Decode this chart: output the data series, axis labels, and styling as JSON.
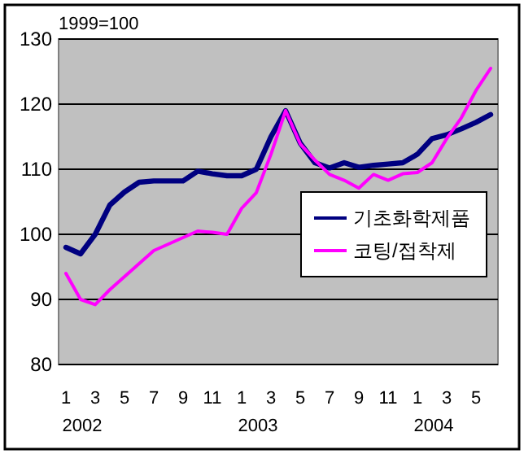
{
  "chart_data": {
    "type": "line",
    "subtitle": "1999=100",
    "categories": [
      "1",
      null,
      "3",
      null,
      "5",
      null,
      "7",
      null,
      "9",
      null,
      "11",
      null,
      "1",
      null,
      "3",
      null,
      "5",
      null,
      "7",
      null,
      "9",
      null,
      "11",
      null,
      "1",
      null,
      "3",
      null,
      "5",
      null
    ],
    "annotations": [
      "2002",
      "2003",
      "2004"
    ],
    "series": [
      {
        "name": "기초화학제품",
        "color": "#000080",
        "values": [
          98,
          97,
          100,
          104.5,
          106.5,
          108,
          108.2,
          108.2,
          108.2,
          109.7,
          109.3,
          109,
          109,
          110,
          115,
          119,
          114,
          111,
          110.2,
          111,
          110.3,
          110.6,
          110.8,
          111,
          112.3,
          114.7,
          115.3,
          116.2,
          117.2,
          118.4
        ]
      },
      {
        "name": "코팅/접착제",
        "color": "#ff00ff",
        "values": [
          94,
          90,
          89.2,
          91.5,
          93.5,
          95.5,
          97.5,
          98.5,
          99.5,
          100.5,
          100.3,
          100,
          104,
          106.4,
          112.3,
          119,
          113.9,
          111.4,
          109.2,
          108.3,
          107.1,
          109.2,
          108.3,
          109.3,
          109.5,
          111,
          114.7,
          117.9,
          122.1,
          125.5
        ]
      }
    ],
    "ylim": [
      80,
      130
    ],
    "yticks": [
      80,
      90,
      100,
      110,
      120,
      130
    ],
    "grid": "y",
    "legend": "right",
    "marker": "none",
    "line_style": "solid"
  }
}
